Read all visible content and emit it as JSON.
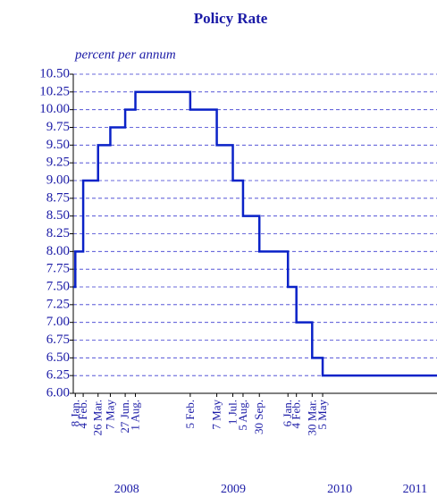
{
  "chart_data": {
    "type": "step",
    "title": "Policy Rate",
    "subtitle": "percent per annum",
    "xlim": [
      "2008-01-01",
      "2011-06-01"
    ],
    "ylim": [
      6,
      10.5
    ],
    "yticks": [
      {
        "value": 6,
        "label": "6.00"
      },
      {
        "value": 6.25,
        "label": "6.25"
      },
      {
        "value": 6.5,
        "label": "6.50"
      },
      {
        "value": 6.75,
        "label": "6.75"
      },
      {
        "value": 7,
        "label": "7.00"
      },
      {
        "value": 7.25,
        "label": "7.25"
      },
      {
        "value": 7.5,
        "label": "7.50"
      },
      {
        "value": 7.75,
        "label": "7.75"
      },
      {
        "value": 8,
        "label": "8.00"
      },
      {
        "value": 8.25,
        "label": "8.25"
      },
      {
        "value": 8.5,
        "label": "8.50"
      },
      {
        "value": 8.75,
        "label": "8.75"
      },
      {
        "value": 9,
        "label": "9.00"
      },
      {
        "value": 9.25,
        "label": "9.25"
      },
      {
        "value": 9.5,
        "label": "9.50"
      },
      {
        "value": 9.75,
        "label": "9.75"
      },
      {
        "value": 10,
        "label": "10.00"
      },
      {
        "value": 10.25,
        "label": "10.25"
      },
      {
        "value": 10.5,
        "label": "10.50"
      }
    ],
    "xticks": [
      {
        "value": "2008-01-08",
        "label": "8 Jan."
      },
      {
        "value": "2008-02-04",
        "label": "4 Feb."
      },
      {
        "value": "2008-03-26",
        "label": "26 Mar."
      },
      {
        "value": "2008-05-07",
        "label": "7 May"
      },
      {
        "value": "2008-06-27",
        "label": "27 Jun."
      },
      {
        "value": "2008-08-01",
        "label": "1 Aug."
      },
      {
        "value": "2009-02-05",
        "label": "5 Feb."
      },
      {
        "value": "2009-05-07",
        "label": "7 May"
      },
      {
        "value": "2009-07-01",
        "label": "1 Jul."
      },
      {
        "value": "2009-08-05",
        "label": "5 Aug."
      },
      {
        "value": "2009-09-30",
        "label": "30 Sep."
      },
      {
        "value": "2010-01-06",
        "label": "6 Jan."
      },
      {
        "value": "2010-02-04",
        "label": "4 Feb."
      },
      {
        "value": "2010-03-30",
        "label": "30 Mar."
      },
      {
        "value": "2010-05-05",
        "label": "5 May"
      }
    ],
    "years": [
      "2008",
      "2009",
      "2010",
      "2011"
    ],
    "grid": true,
    "series": [
      {
        "name": "Policy rate",
        "color": "#0a22c8",
        "x": [
          "2008-01-01",
          "2008-01-08",
          "2008-02-04",
          "2008-03-26",
          "2008-05-07",
          "2008-06-27",
          "2008-08-01",
          "2009-02-05",
          "2009-05-07",
          "2009-07-01",
          "2009-08-05",
          "2009-09-30",
          "2010-01-06",
          "2010-02-04",
          "2010-03-30",
          "2010-05-05"
        ],
        "values": [
          7.5,
          8,
          9,
          9.5,
          9.75,
          10,
          10.25,
          10,
          9.5,
          9,
          8.5,
          8,
          7.5,
          7,
          6.5,
          6.25
        ]
      }
    ]
  }
}
